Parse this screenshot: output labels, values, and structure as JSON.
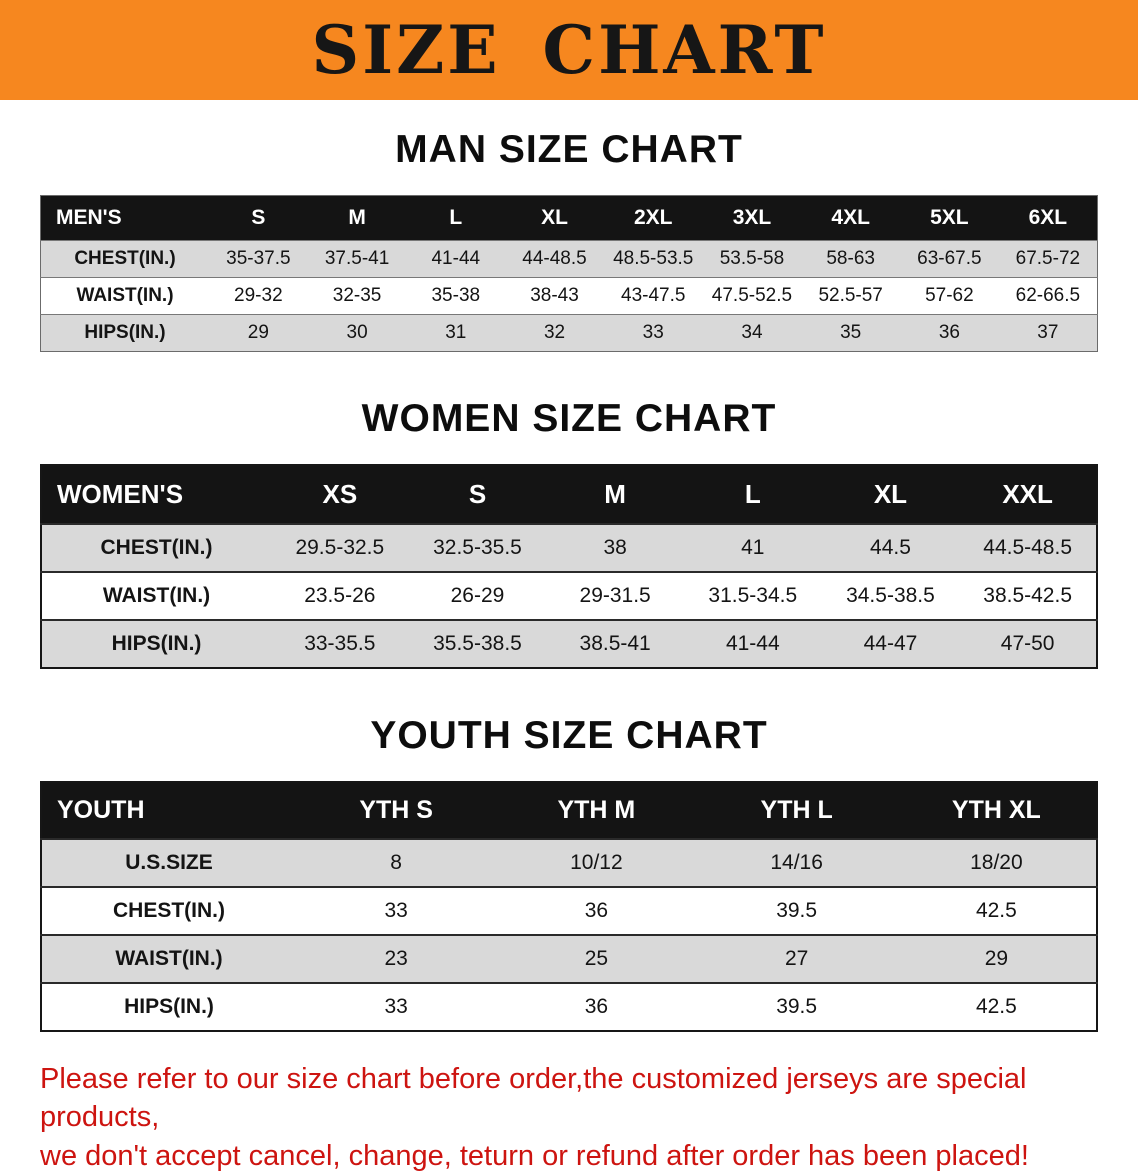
{
  "banner": {
    "title": "SIZE CHART",
    "background_color": "#f6871f"
  },
  "sections": [
    {
      "heading": "MAN SIZE CHART",
      "table": {
        "style": "men",
        "header": [
          "MEN'S",
          "S",
          "M",
          "L",
          "XL",
          "2XL",
          "3XL",
          "4XL",
          "5XL",
          "6XL"
        ],
        "rows": [
          [
            "CHEST(IN.)",
            "35-37.5",
            "37.5-41",
            "41-44",
            "44-48.5",
            "48.5-53.5",
            "53.5-58",
            "58-63",
            "63-67.5",
            "67.5-72"
          ],
          [
            "WAIST(IN.)",
            "29-32",
            "32-35",
            "35-38",
            "38-43",
            "43-47.5",
            "47.5-52.5",
            "52.5-57",
            "57-62",
            "62-66.5"
          ],
          [
            "HIPS(IN.)",
            "29",
            "30",
            "31",
            "32",
            "33",
            "34",
            "35",
            "36",
            "37"
          ]
        ]
      }
    },
    {
      "heading": "WOMEN SIZE CHART",
      "table": {
        "style": "women",
        "header": [
          "WOMEN'S",
          "XS",
          "S",
          "M",
          "L",
          "XL",
          "XXL"
        ],
        "rows": [
          [
            "CHEST(IN.)",
            "29.5-32.5",
            "32.5-35.5",
            "38",
            "41",
            "44.5",
            "44.5-48.5"
          ],
          [
            "WAIST(IN.)",
            "23.5-26",
            "26-29",
            "29-31.5",
            "31.5-34.5",
            "34.5-38.5",
            "38.5-42.5"
          ],
          [
            "HIPS(IN.)",
            "33-35.5",
            "35.5-38.5",
            "38.5-41",
            "41-44",
            "44-47",
            "47-50"
          ]
        ]
      }
    },
    {
      "heading": "YOUTH SIZE CHART",
      "table": {
        "style": "youth",
        "header": [
          "YOUTH",
          "YTH S",
          "YTH M",
          "YTH L",
          "YTH XL"
        ],
        "rows": [
          [
            "U.S.SIZE",
            "8",
            "10/12",
            "14/16",
            "18/20"
          ],
          [
            "CHEST(IN.)",
            "33",
            "36",
            "39.5",
            "42.5"
          ],
          [
            "WAIST(IN.)",
            "23",
            "25",
            "27",
            "29"
          ],
          [
            "HIPS(IN.)",
            "33",
            "36",
            "39.5",
            "42.5"
          ]
        ]
      }
    }
  ],
  "disclaimer": {
    "color": "#cd1410",
    "lines": [
      "Please refer to our size chart before order,the customized jerseys are special products,",
      "we don't accept cancel, change, teturn or refund after order has been placed!"
    ]
  }
}
